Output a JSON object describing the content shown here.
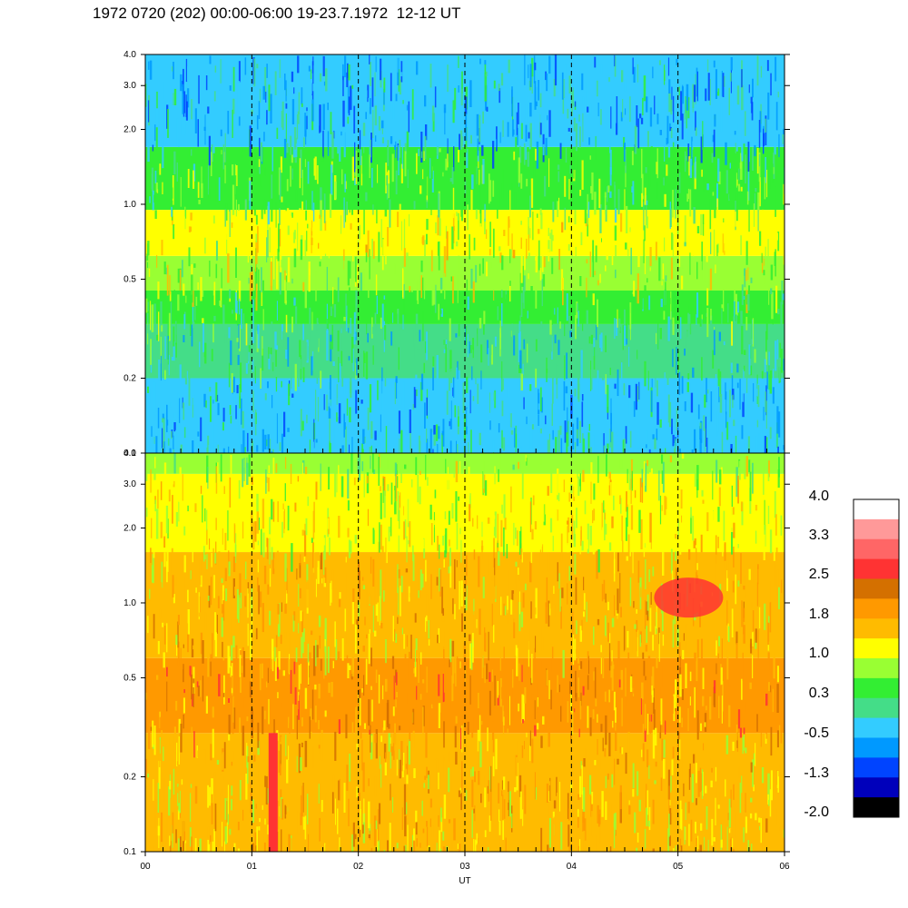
{
  "header": {
    "title": "1972 0720 (202) 00:00-06:00 19-23.7.1972  12-12 UT"
  },
  "chart_data": [
    {
      "type": "heatmap",
      "panel": "upper",
      "title": "",
      "xlabel": "",
      "ylabel": "",
      "xlim": [
        0,
        6
      ],
      "ylim": [
        0.1,
        4.0
      ],
      "yscale": "log",
      "xticks": [],
      "yticks": [
        {
          "value": 0.1,
          "label": "0.1"
        },
        {
          "value": 0.2,
          "label": "0.2"
        },
        {
          "value": 0.5,
          "label": "0.5"
        },
        {
          "value": 1.0,
          "label": "1.0"
        },
        {
          "value": 2.0,
          "label": "2.0"
        },
        {
          "value": 3.0,
          "label": "3.0"
        },
        {
          "value": 4.0,
          "label": "4.0"
        }
      ],
      "hour_markers": [
        1,
        2,
        3,
        4,
        5
      ],
      "bands": [
        {
          "ymin": 0.1,
          "ymax": 0.2,
          "level": -0.3
        },
        {
          "ymin": 0.2,
          "ymax": 0.33,
          "level": 0.0
        },
        {
          "ymin": 0.33,
          "ymax": 0.45,
          "level": 0.3
        },
        {
          "ymin": 0.45,
          "ymax": 0.62,
          "level": 0.8
        },
        {
          "ymin": 0.62,
          "ymax": 0.95,
          "level": 1.0
        },
        {
          "ymin": 0.95,
          "ymax": 1.7,
          "level": 0.5
        },
        {
          "ymin": 1.7,
          "ymax": 4.0,
          "level": -0.4
        }
      ]
    },
    {
      "type": "heatmap",
      "panel": "lower",
      "title": "",
      "xlabel": "UT",
      "ylabel": "",
      "xlim": [
        0,
        6
      ],
      "ylim": [
        0.1,
        4.0
      ],
      "yscale": "log",
      "xticks": [
        {
          "value": 0,
          "label": "00"
        },
        {
          "value": 1,
          "label": "01"
        },
        {
          "value": 2,
          "label": "02"
        },
        {
          "value": 3,
          "label": "03"
        },
        {
          "value": 4,
          "label": "04"
        },
        {
          "value": 5,
          "label": "05"
        },
        {
          "value": 6,
          "label": "06"
        }
      ],
      "yticks": [
        {
          "value": 0.1,
          "label": "0.1"
        },
        {
          "value": 0.2,
          "label": "0.2"
        },
        {
          "value": 0.5,
          "label": "0.5"
        },
        {
          "value": 1.0,
          "label": "1.0"
        },
        {
          "value": 2.0,
          "label": "2.0"
        },
        {
          "value": 3.0,
          "label": "3.0"
        },
        {
          "value": 4.0,
          "label": "4.0"
        }
      ],
      "hour_markers": [
        1,
        2,
        3,
        4,
        5
      ],
      "bands": [
        {
          "ymin": 0.1,
          "ymax": 0.3,
          "level": 1.5
        },
        {
          "ymin": 0.3,
          "ymax": 0.6,
          "level": 1.9
        },
        {
          "ymin": 0.6,
          "ymax": 1.6,
          "level": 1.5
        },
        {
          "ymin": 1.6,
          "ymax": 3.3,
          "level": 1.2
        },
        {
          "ymin": 3.3,
          "ymax": 4.0,
          "level": 0.8
        }
      ],
      "features": [
        {
          "x": 1.2,
          "ymin": 0.1,
          "ymax": 0.3,
          "level": 2.6
        },
        {
          "x": 5.1,
          "y": 1.05,
          "level": 2.5
        }
      ]
    }
  ],
  "colorbar": {
    "labels": [
      "4.0",
      "3.3",
      "2.5",
      "1.8",
      "1.0",
      "0.3",
      "-0.5",
      "-1.3",
      "-2.0"
    ],
    "colors": [
      "#ffffff",
      "#ff9999",
      "#ff6666",
      "#ff3333",
      "#d47000",
      "#ff9900",
      "#ffbb00",
      "#ffff00",
      "#99ff33",
      "#33ee33",
      "#44dd88",
      "#33ccff",
      "#0099ff",
      "#0044ff",
      "#0000bb",
      "#000000"
    ]
  }
}
